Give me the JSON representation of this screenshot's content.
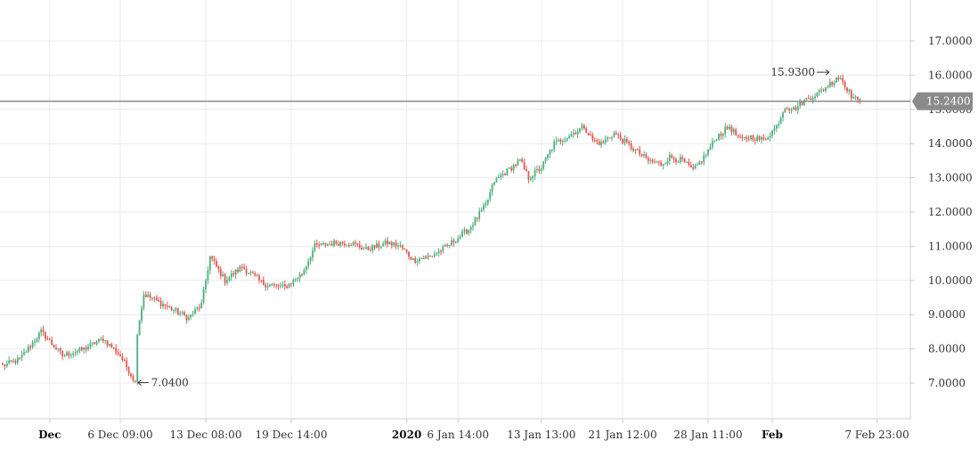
{
  "chart_data": {
    "type": "candlestick",
    "y_axis": {
      "ticks": [
        "7.0000",
        "8.0000",
        "9.0000",
        "10.0000",
        "11.0000",
        "12.0000",
        "13.0000",
        "14.0000",
        "15.0000",
        "16.0000",
        "17.0000"
      ],
      "range": [
        6.0,
        17.6
      ],
      "position": "right"
    },
    "x_axis": {
      "ticks": [
        {
          "label": "Dec",
          "bold": true,
          "index": 22
        },
        {
          "label": "6 Dec 09:00",
          "bold": false,
          "index": 55
        },
        {
          "label": "13 Dec 08:00",
          "bold": false,
          "index": 95
        },
        {
          "label": "19 Dec 14:00",
          "bold": false,
          "index": 135
        },
        {
          "label": "2020",
          "bold": true,
          "index": 189
        },
        {
          "label": "6 Jan 14:00",
          "bold": false,
          "index": 213
        },
        {
          "label": "13 Jan 13:00",
          "bold": false,
          "index": 252
        },
        {
          "label": "21 Jan 12:00",
          "bold": false,
          "index": 290
        },
        {
          "label": "28 Jan 11:00",
          "bold": false,
          "index": 330
        },
        {
          "label": "Feb",
          "bold": true,
          "index": 360
        },
        {
          "label": "7 Feb 23:00",
          "bold": false,
          "index": 409
        }
      ]
    },
    "grid": true,
    "colors": {
      "up": "#4caf7a",
      "down": "#e0574f",
      "last_price_line": "#8a8a8a",
      "last_price_label_bg": "#8a8a8a"
    },
    "last_price": {
      "value": 15.24,
      "label": "15.2400"
    },
    "annotations": [
      {
        "label": "15.9300",
        "value": 15.93,
        "index": 390,
        "side": "left"
      },
      {
        "label": "7.0400",
        "value": 7.04,
        "index": 62,
        "side": "right"
      }
    ],
    "waypoints": [
      [
        0,
        7.5
      ],
      [
        8,
        7.7
      ],
      [
        18,
        8.5
      ],
      [
        28,
        7.8
      ],
      [
        38,
        8.0
      ],
      [
        47,
        8.3
      ],
      [
        55,
        7.8
      ],
      [
        62,
        7.04
      ],
      [
        63,
        8.5
      ],
      [
        66,
        9.6
      ],
      [
        75,
        9.3
      ],
      [
        87,
        8.9
      ],
      [
        93,
        9.3
      ],
      [
        97,
        10.7
      ],
      [
        104,
        10.0
      ],
      [
        112,
        10.4
      ],
      [
        122,
        9.9
      ],
      [
        132,
        9.8
      ],
      [
        140,
        10.2
      ],
      [
        146,
        11.0
      ],
      [
        156,
        11.1
      ],
      [
        163,
        11.1
      ],
      [
        170,
        10.9
      ],
      [
        180,
        11.1
      ],
      [
        186,
        11.0
      ],
      [
        192,
        10.6
      ],
      [
        200,
        10.7
      ],
      [
        208,
        11.0
      ],
      [
        218,
        11.5
      ],
      [
        226,
        12.2
      ],
      [
        230,
        12.9
      ],
      [
        236,
        13.2
      ],
      [
        242,
        13.5
      ],
      [
        246,
        13.0
      ],
      [
        252,
        13.3
      ],
      [
        258,
        14.0
      ],
      [
        264,
        14.2
      ],
      [
        272,
        14.5
      ],
      [
        276,
        14.1
      ],
      [
        280,
        14.0
      ],
      [
        286,
        14.3
      ],
      [
        292,
        14.0
      ],
      [
        298,
        13.7
      ],
      [
        302,
        13.5
      ],
      [
        308,
        13.4
      ],
      [
        312,
        13.6
      ],
      [
        318,
        13.5
      ],
      [
        323,
        13.2
      ],
      [
        328,
        13.6
      ],
      [
        334,
        14.2
      ],
      [
        340,
        14.5
      ],
      [
        345,
        14.1
      ],
      [
        350,
        14.2
      ],
      [
        356,
        14.1
      ],
      [
        362,
        14.5
      ],
      [
        366,
        15.1
      ],
      [
        370,
        15.0
      ],
      [
        376,
        15.3
      ],
      [
        382,
        15.5
      ],
      [
        388,
        15.8
      ],
      [
        392,
        15.93
      ],
      [
        397,
        15.4
      ],
      [
        400,
        15.24
      ],
      [
        401,
        15.24
      ]
    ],
    "dense_series_note": "none"
  }
}
